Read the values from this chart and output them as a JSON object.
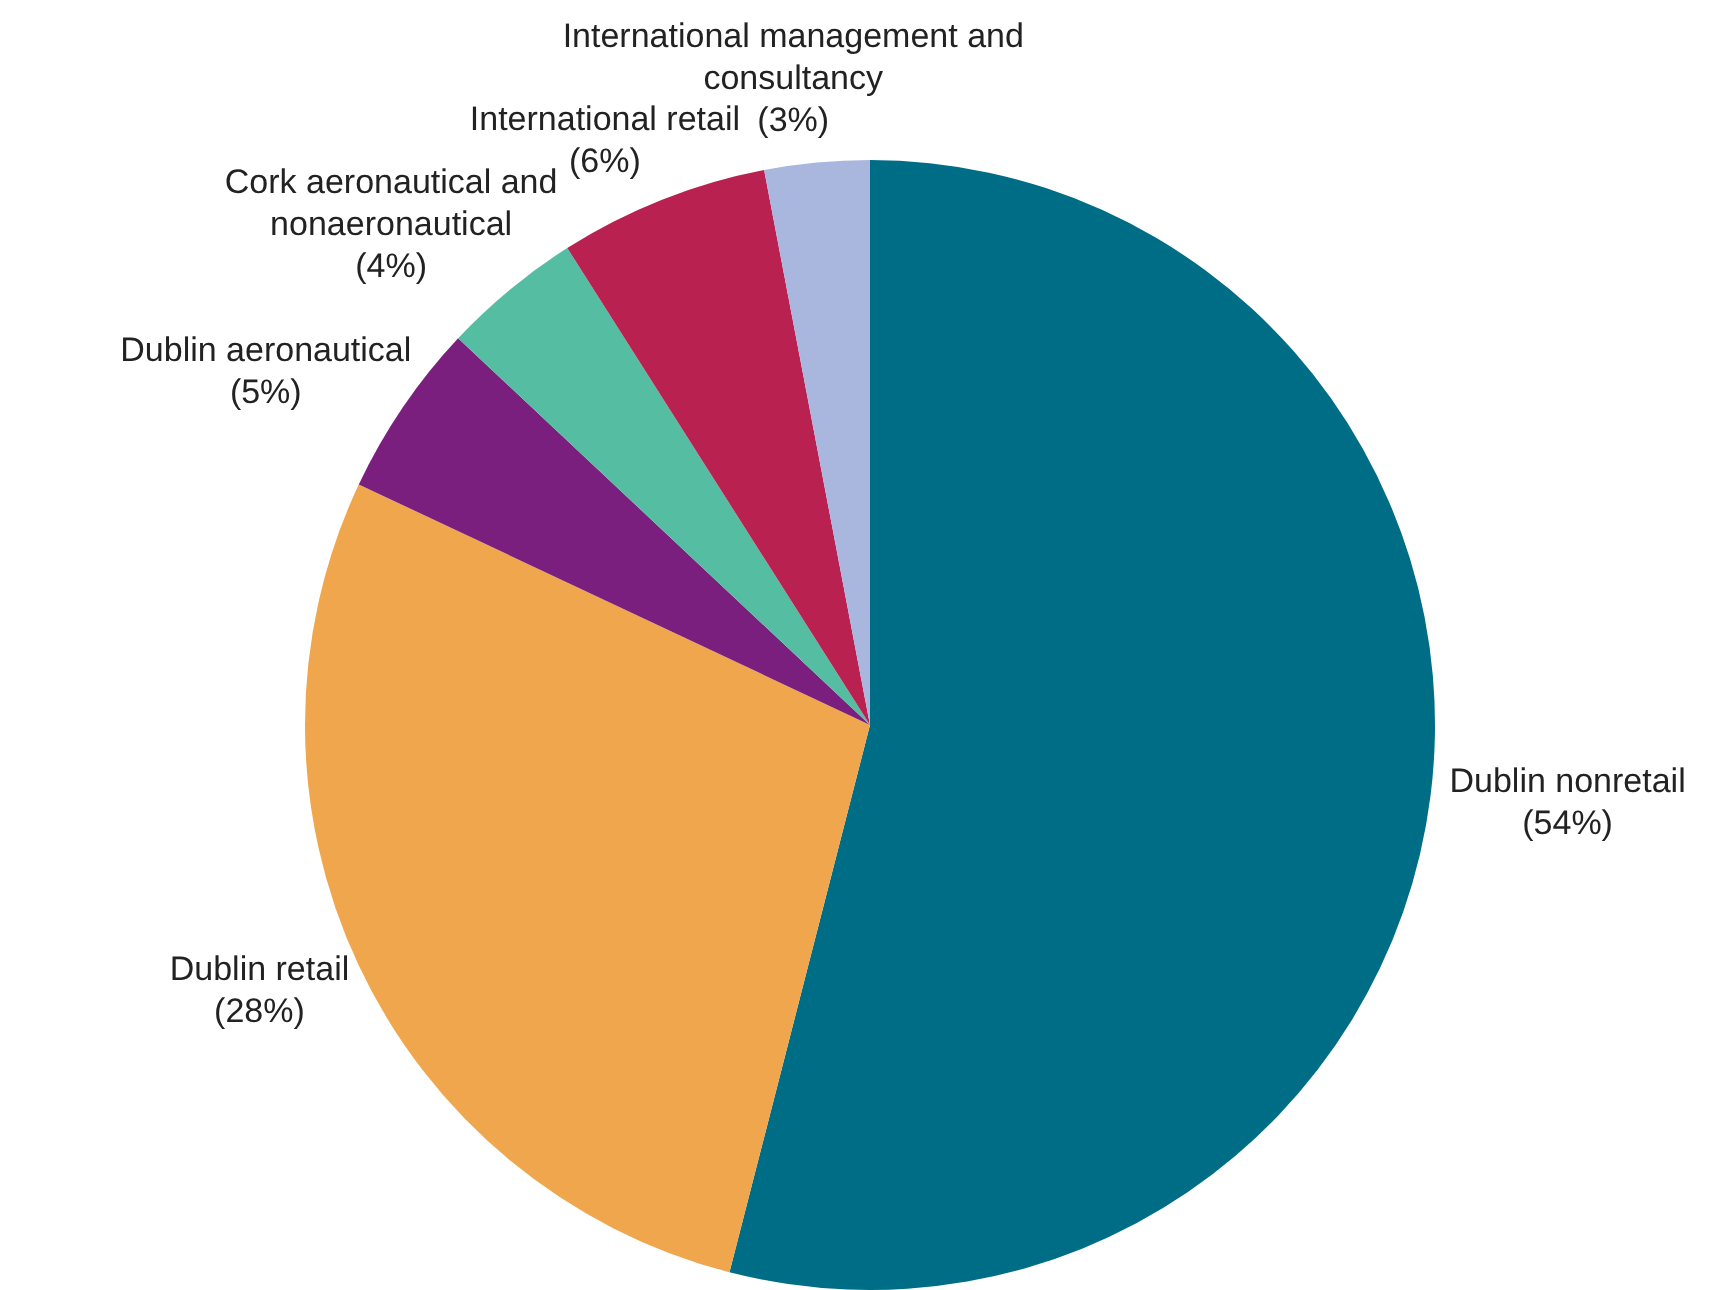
{
  "chart_data": {
    "type": "pie",
    "categories": [
      "Dublin nonretail",
      "Dublin retail",
      "Dublin aeronautical",
      "Cork aeronautical and nonaeronautical",
      "International retail",
      "International management and consultancy"
    ],
    "values": [
      54,
      28,
      5,
      4,
      6,
      3
    ],
    "value_labels": [
      "(54%)",
      "(28%)",
      "(5%)",
      "(4%)",
      "(6%)",
      "(3%)"
    ],
    "colors": [
      "#006d87",
      "#f0a64c",
      "#7b1f7f",
      "#55bda2",
      "#b82150",
      "#a9b6de"
    ],
    "legend": false
  }
}
